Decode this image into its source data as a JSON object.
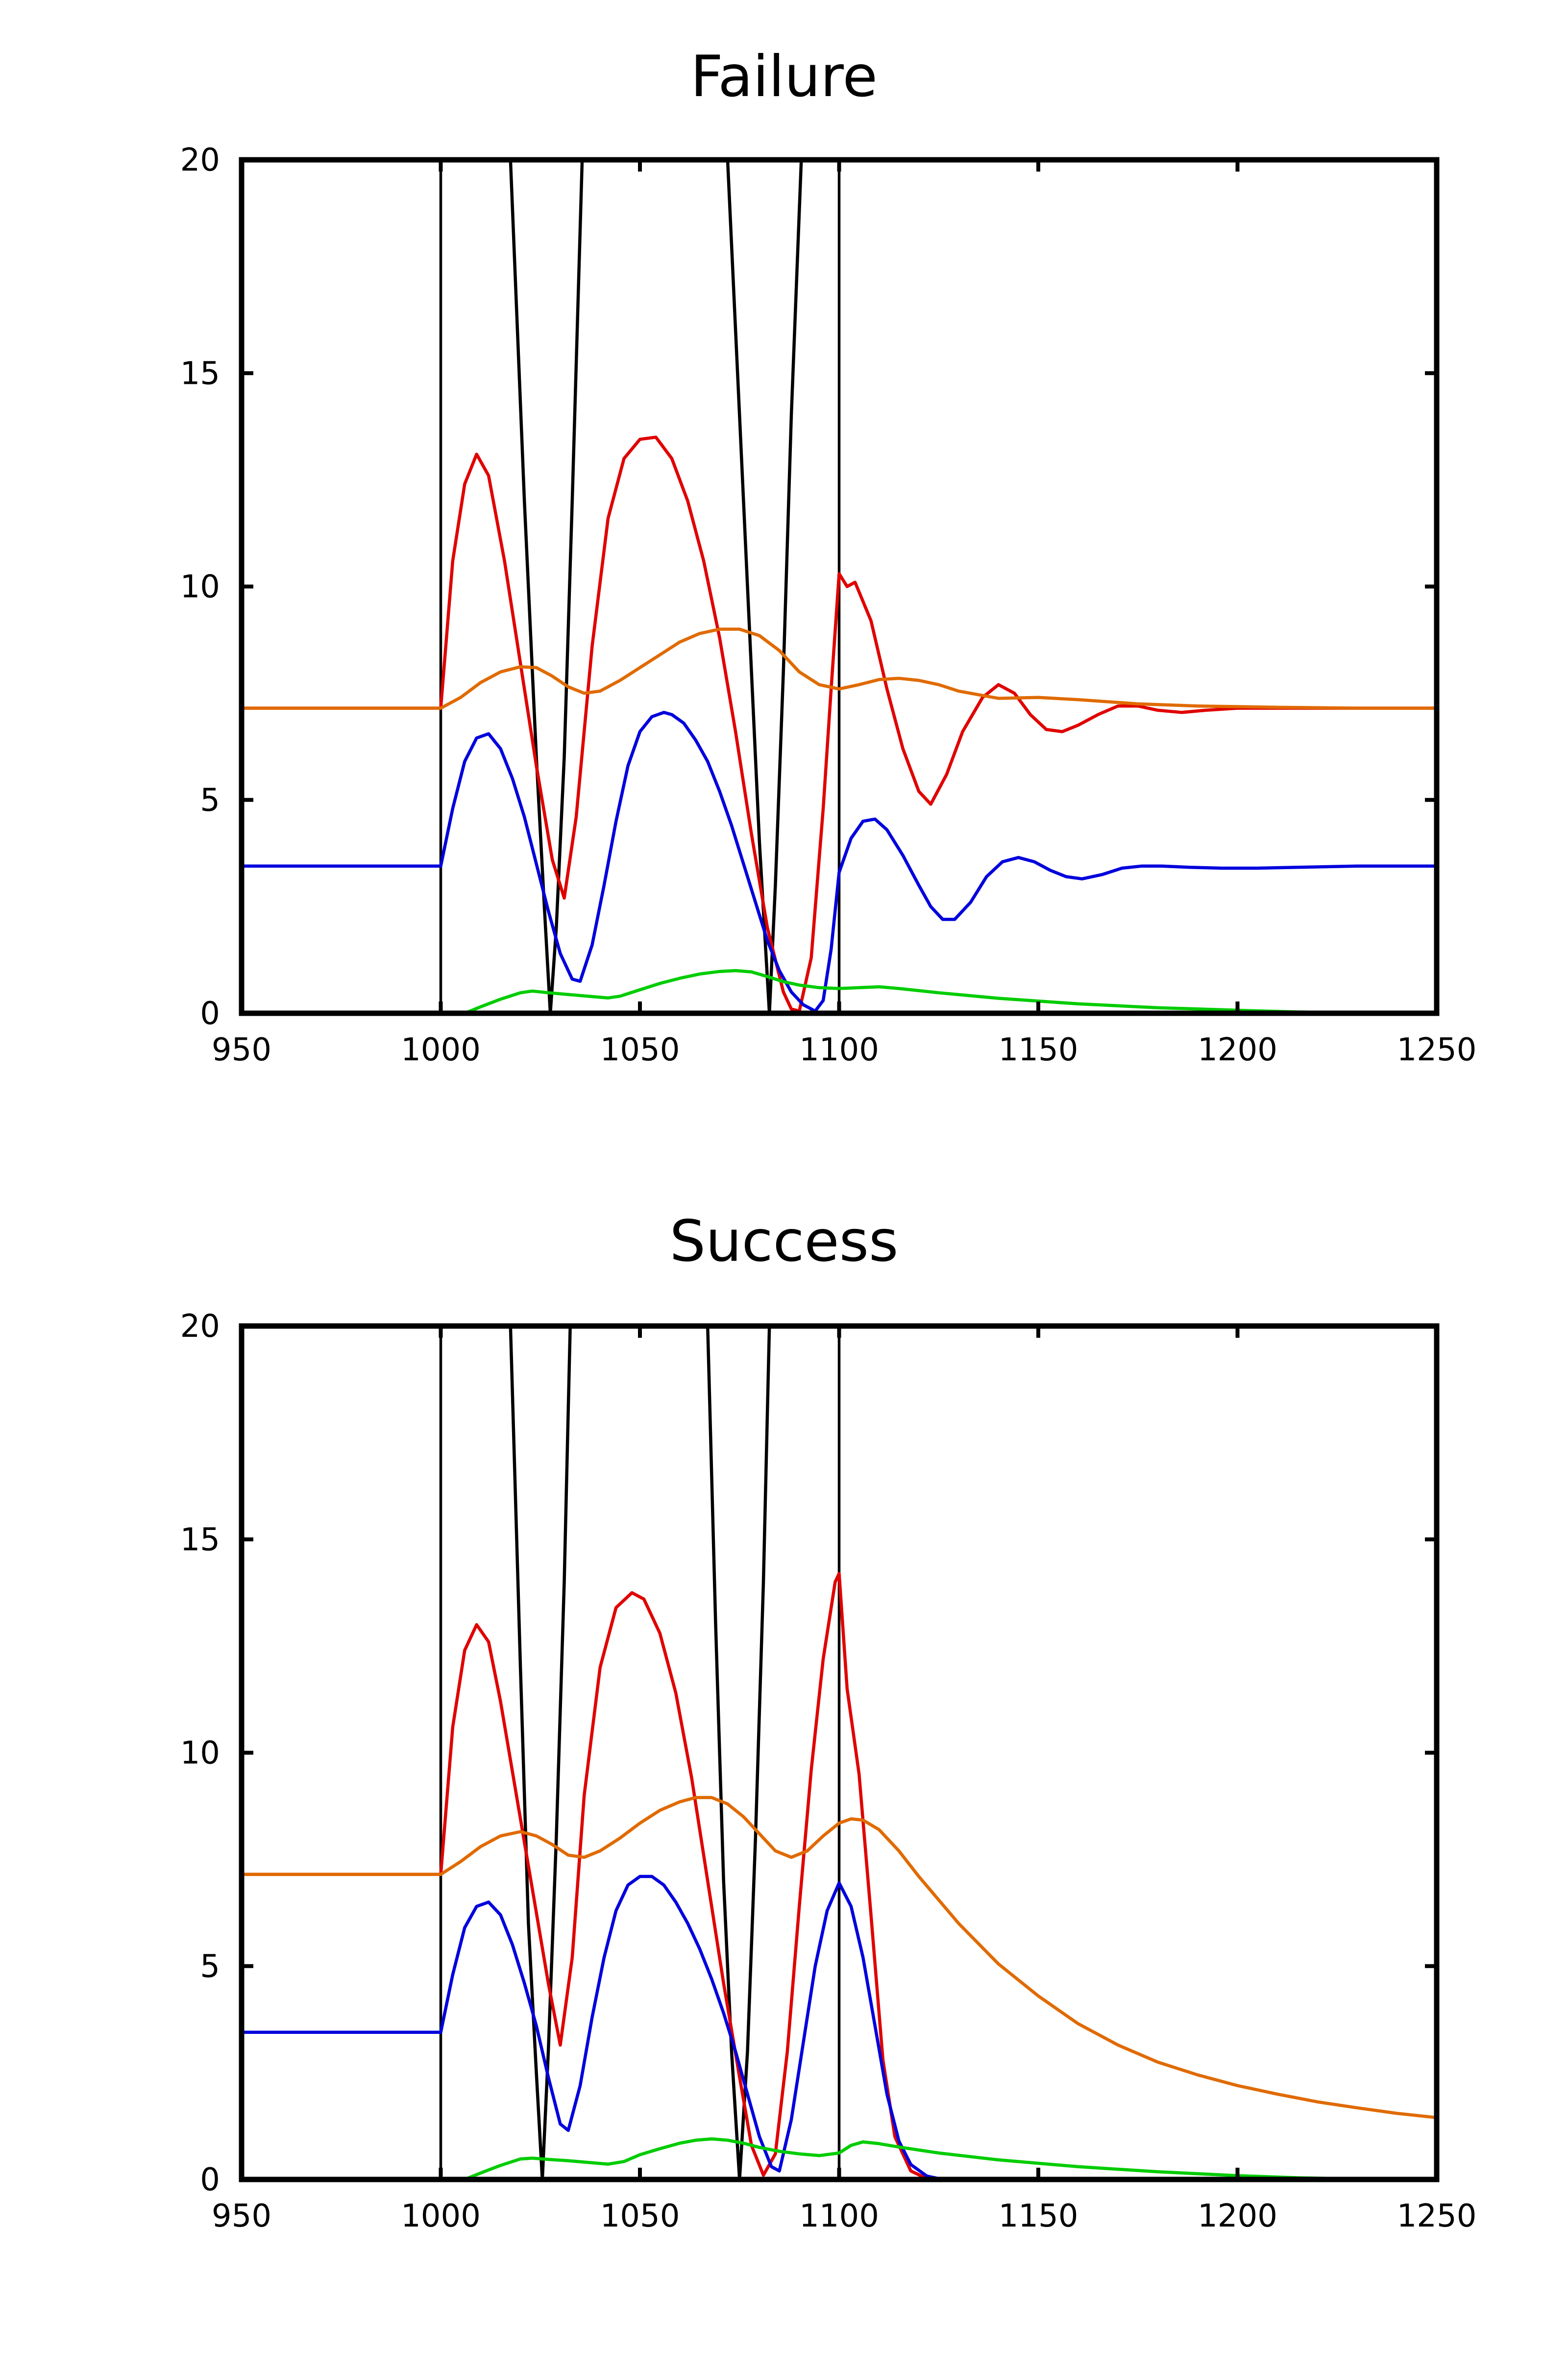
{
  "chart_data": [
    {
      "type": "line",
      "title": "Failure",
      "xlabel": "",
      "ylabel": "",
      "xlim": [
        950,
        1250
      ],
      "ylim": [
        0,
        20
      ],
      "xticks": [
        950,
        1000,
        1050,
        1100,
        1150,
        1200,
        1250
      ],
      "yticks": [
        0,
        5,
        10,
        15,
        20
      ],
      "grid": false,
      "legend": "none",
      "vertical_lines": {
        "color": "#000000",
        "x": [
          1000,
          1100
        ]
      },
      "series": [
        {
          "color": "#000000",
          "x": [
            1017.5,
            1021,
            1024,
            1026,
            1027.5,
            1029,
            1031,
            1033,
            1035.5,
            1072,
            1075,
            1078,
            1080,
            1082.5,
            1084,
            1086,
            1088,
            1090.5
          ],
          "y": [
            20,
            12,
            6,
            2.5,
            0,
            2,
            6,
            12,
            20,
            20,
            14,
            8,
            4,
            0,
            3,
            8,
            14,
            20
          ]
        },
        {
          "color": "#e00000",
          "x": [
            950,
            999.9,
            1000,
            1003,
            1006,
            1009,
            1012,
            1016,
            1020,
            1024,
            1028,
            1031,
            1034,
            1038,
            1042,
            1046,
            1050,
            1054,
            1058,
            1062,
            1066,
            1070,
            1074,
            1078,
            1082,
            1086,
            1088,
            1090,
            1093,
            1096,
            1098,
            1100,
            1102,
            1104,
            1108,
            1112,
            1116,
            1120,
            1123,
            1127,
            1131,
            1136,
            1140,
            1144,
            1148,
            1152,
            1156,
            1160,
            1165,
            1170,
            1175,
            1180,
            1186,
            1192,
            1200,
            1210,
            1225,
            1250
          ],
          "y": [
            7.15,
            7.15,
            7.15,
            10.6,
            12.4,
            13.1,
            12.6,
            10.6,
            8.2,
            5.8,
            3.6,
            2.7,
            4.6,
            8.6,
            11.6,
            13.0,
            13.45,
            13.5,
            13.0,
            12.0,
            10.6,
            8.8,
            6.6,
            4.2,
            2.0,
            0.5,
            0.1,
            0.05,
            1.3,
            4.8,
            7.6,
            10.3,
            10.0,
            10.1,
            9.2,
            7.6,
            6.2,
            5.2,
            4.9,
            5.6,
            6.6,
            7.4,
            7.7,
            7.5,
            7.0,
            6.65,
            6.6,
            6.75,
            7.0,
            7.2,
            7.2,
            7.1,
            7.05,
            7.1,
            7.15,
            7.15,
            7.15,
            7.15
          ]
        },
        {
          "color": "#e06a00",
          "x": [
            950,
            1000,
            1005,
            1010,
            1015,
            1020,
            1024,
            1028,
            1032,
            1036,
            1040,
            1045,
            1050,
            1055,
            1060,
            1065,
            1070,
            1075,
            1080,
            1085,
            1090,
            1095,
            1100,
            1105,
            1110,
            1115,
            1120,
            1125,
            1130,
            1140,
            1150,
            1160,
            1175,
            1190,
            1210,
            1230,
            1250
          ],
          "y": [
            7.15,
            7.15,
            7.4,
            7.75,
            8.0,
            8.12,
            8.1,
            7.9,
            7.65,
            7.5,
            7.55,
            7.8,
            8.1,
            8.4,
            8.7,
            8.9,
            9.0,
            9.0,
            8.85,
            8.5,
            8.0,
            7.7,
            7.6,
            7.7,
            7.82,
            7.85,
            7.8,
            7.7,
            7.55,
            7.38,
            7.4,
            7.35,
            7.25,
            7.2,
            7.17,
            7.15,
            7.15
          ]
        },
        {
          "color": "#0000dd",
          "x": [
            950,
            999.9,
            1000,
            1003,
            1006,
            1009,
            1012,
            1015,
            1018,
            1021,
            1024,
            1027,
            1030,
            1033,
            1035,
            1038,
            1041,
            1044,
            1047,
            1050,
            1053,
            1056,
            1058,
            1061,
            1064,
            1067,
            1070,
            1073,
            1076,
            1079,
            1082,
            1085,
            1088,
            1091,
            1094,
            1096,
            1098,
            1100,
            1103,
            1106,
            1109,
            1112,
            1116,
            1120,
            1123,
            1126,
            1129,
            1133,
            1137,
            1141,
            1145,
            1149,
            1153,
            1157,
            1161,
            1166,
            1171,
            1176,
            1181,
            1188,
            1196,
            1205,
            1215,
            1230,
            1250
          ],
          "y": [
            3.45,
            3.45,
            3.45,
            4.8,
            5.9,
            6.45,
            6.55,
            6.2,
            5.5,
            4.6,
            3.5,
            2.4,
            1.4,
            0.8,
            0.75,
            1.6,
            3.0,
            4.5,
            5.8,
            6.6,
            6.95,
            7.05,
            7.0,
            6.8,
            6.4,
            5.9,
            5.2,
            4.4,
            3.5,
            2.6,
            1.7,
            1.0,
            0.5,
            0.2,
            0.05,
            0.3,
            1.5,
            3.3,
            4.1,
            4.5,
            4.55,
            4.3,
            3.7,
            3.0,
            2.5,
            2.2,
            2.2,
            2.6,
            3.2,
            3.55,
            3.65,
            3.55,
            3.35,
            3.2,
            3.15,
            3.25,
            3.4,
            3.45,
            3.45,
            3.42,
            3.4,
            3.4,
            3.42,
            3.45,
            3.45
          ]
        },
        {
          "color": "#00cc00",
          "x": [
            1006,
            1010,
            1015,
            1020,
            1023,
            1027,
            1032,
            1037,
            1042,
            1045,
            1050,
            1055,
            1060,
            1065,
            1070,
            1074,
            1078,
            1082,
            1086,
            1090,
            1095,
            1100,
            1105,
            1110,
            1115,
            1125,
            1140,
            1160,
            1180,
            1200,
            1215,
            1230,
            1250
          ],
          "y": [
            0,
            0.15,
            0.33,
            0.48,
            0.52,
            0.48,
            0.44,
            0.4,
            0.36,
            0.4,
            0.55,
            0.7,
            0.82,
            0.92,
            0.98,
            1.0,
            0.97,
            0.86,
            0.74,
            0.66,
            0.6,
            0.58,
            0.6,
            0.62,
            0.58,
            0.48,
            0.35,
            0.22,
            0.13,
            0.07,
            0.03,
            0.01,
            0
          ]
        }
      ]
    },
    {
      "type": "line",
      "title": "Success",
      "xlabel": "",
      "ylabel": "",
      "xlim": [
        950,
        1250
      ],
      "ylim": [
        0,
        20
      ],
      "xticks": [
        950,
        1000,
        1050,
        1100,
        1150,
        1200,
        1250
      ],
      "yticks": [
        0,
        5,
        10,
        15,
        20
      ],
      "grid": false,
      "legend": "none",
      "vertical_lines": {
        "color": "#000000",
        "x": [
          1000,
          1100
        ]
      },
      "series": [
        {
          "color": "#000000",
          "x": [
            1017.5,
            1020,
            1022,
            1024,
            1025.5,
            1027,
            1029,
            1031,
            1032.5,
            1067,
            1069,
            1071,
            1073,
            1075,
            1077,
            1079,
            1081,
            1082.5
          ],
          "y": [
            20,
            12,
            6,
            2.5,
            0,
            3,
            8,
            14,
            20,
            20,
            13,
            7,
            3,
            0,
            3,
            8,
            14,
            20
          ]
        },
        {
          "color": "#e00000",
          "x": [
            950,
            999.9,
            1000,
            1003,
            1006,
            1009,
            1012,
            1015,
            1019,
            1023,
            1027,
            1030,
            1033,
            1036,
            1040,
            1044,
            1048,
            1051,
            1055,
            1059,
            1063,
            1067,
            1071,
            1075,
            1078,
            1081,
            1084,
            1087,
            1090,
            1093,
            1096,
            1099,
            1100,
            1102,
            1105,
            1108,
            1111,
            1114,
            1118,
            1122,
            1126,
            1250
          ],
          "y": [
            7.15,
            7.15,
            7.15,
            10.6,
            12.4,
            13.0,
            12.6,
            11.2,
            9.0,
            6.8,
            4.6,
            3.15,
            5.2,
            9.0,
            12.0,
            13.4,
            13.75,
            13.6,
            12.8,
            11.4,
            9.4,
            7.0,
            4.6,
            2.4,
            0.8,
            0.1,
            0.6,
            3.0,
            6.4,
            9.6,
            12.2,
            14.0,
            14.2,
            11.5,
            9.5,
            6.2,
            2.8,
            1.0,
            0.2,
            0.02,
            0,
            0
          ]
        },
        {
          "color": "#e06a00",
          "x": [
            950,
            1000,
            1005,
            1010,
            1015,
            1020,
            1024,
            1028,
            1032,
            1036,
            1040,
            1045,
            1050,
            1055,
            1060,
            1064,
            1068,
            1072,
            1076,
            1080,
            1084,
            1088,
            1092,
            1096,
            1100,
            1103,
            1106,
            1110,
            1115,
            1120,
            1130,
            1140,
            1150,
            1160,
            1170,
            1180,
            1190,
            1200,
            1210,
            1220,
            1230,
            1240,
            1250
          ],
          "y": [
            7.15,
            7.15,
            7.45,
            7.8,
            8.05,
            8.15,
            8.05,
            7.85,
            7.6,
            7.55,
            7.7,
            8.0,
            8.35,
            8.65,
            8.85,
            8.95,
            8.95,
            8.8,
            8.5,
            8.1,
            7.7,
            7.55,
            7.7,
            8.05,
            8.35,
            8.45,
            8.42,
            8.2,
            7.7,
            7.1,
            6.0,
            5.05,
            4.3,
            3.65,
            3.15,
            2.75,
            2.45,
            2.2,
            2.0,
            1.82,
            1.68,
            1.55,
            1.45
          ]
        },
        {
          "color": "#0000dd",
          "x": [
            950,
            999.9,
            1000,
            1003,
            1006,
            1009,
            1012,
            1015,
            1018,
            1021,
            1024,
            1027,
            1030,
            1032,
            1035,
            1038,
            1041,
            1044,
            1047,
            1050,
            1053,
            1056,
            1059,
            1062,
            1065,
            1068,
            1071,
            1074,
            1077,
            1080,
            1083,
            1085,
            1088,
            1091,
            1094,
            1097,
            1100,
            1103,
            1106,
            1109,
            1112,
            1115,
            1118,
            1122,
            1126,
            1250
          ],
          "y": [
            3.45,
            3.45,
            3.45,
            4.8,
            5.9,
            6.4,
            6.5,
            6.2,
            5.5,
            4.6,
            3.6,
            2.4,
            1.3,
            1.15,
            2.2,
            3.8,
            5.2,
            6.3,
            6.9,
            7.1,
            7.1,
            6.9,
            6.5,
            6.0,
            5.4,
            4.7,
            3.9,
            3.0,
            2.0,
            1.0,
            0.3,
            0.2,
            1.4,
            3.2,
            5.0,
            6.3,
            6.95,
            6.4,
            5.2,
            3.6,
            2.0,
            0.9,
            0.35,
            0.08,
            0,
            0
          ]
        },
        {
          "color": "#00cc00",
          "x": [
            1006,
            1010,
            1015,
            1020,
            1023,
            1027,
            1032,
            1037,
            1042,
            1046,
            1050,
            1055,
            1060,
            1064,
            1068,
            1072,
            1076,
            1080,
            1085,
            1090,
            1095,
            1100,
            1103,
            1106,
            1110,
            1115,
            1125,
            1140,
            1160,
            1180,
            1200,
            1215,
            1230,
            1250
          ],
          "y": [
            0,
            0.15,
            0.33,
            0.48,
            0.5,
            0.47,
            0.44,
            0.4,
            0.36,
            0.42,
            0.58,
            0.72,
            0.85,
            0.92,
            0.95,
            0.92,
            0.85,
            0.75,
            0.66,
            0.6,
            0.56,
            0.62,
            0.8,
            0.88,
            0.84,
            0.76,
            0.62,
            0.46,
            0.3,
            0.18,
            0.09,
            0.04,
            0.01,
            0
          ]
        }
      ]
    }
  ]
}
